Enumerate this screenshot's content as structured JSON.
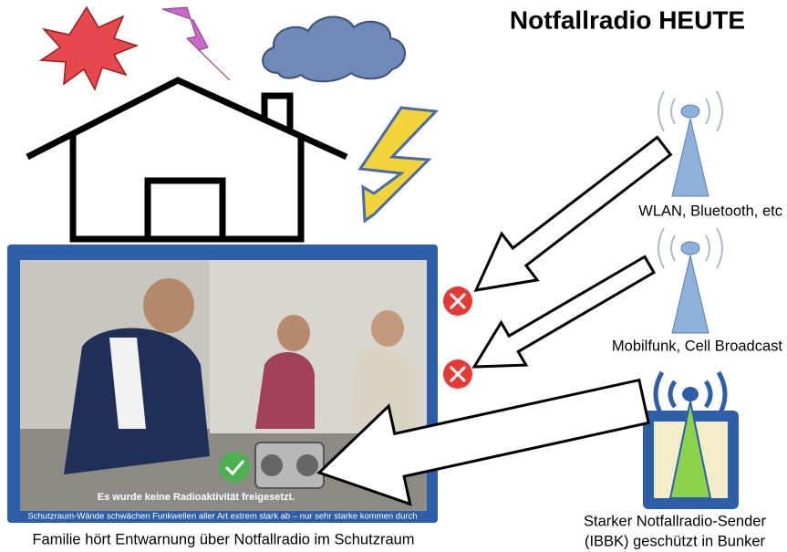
{
  "title": "Notfallradio HEUTE",
  "sources": [
    {
      "label": "WLAN, Bluetooth, etc"
    },
    {
      "label": "Mobilfunk, Cell Broadcast"
    },
    {
      "label_lines": [
        "Starker Notfallradio-Sender",
        "(IBBK) geschützt in Bunker"
      ]
    }
  ],
  "photo": {
    "subtitle": "Es wurde keine Radioaktivität freigesetzt.",
    "caption": "Schutzraum-Wände schwächen Funkwellen aller Art extrem stark ab – nur sehr starke kommen durch"
  },
  "footer": "Familie hört Entwarnung über Notfallradio im Schutzraum"
}
